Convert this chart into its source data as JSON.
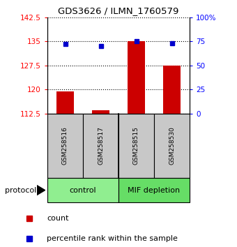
{
  "title": "GDS3626 / ILMN_1760579",
  "samples": [
    "GSM258516",
    "GSM258517",
    "GSM258515",
    "GSM258530"
  ],
  "groups": [
    {
      "name": "control",
      "indices": [
        0,
        1
      ],
      "color": "#90EE90"
    },
    {
      "name": "MIF depletion",
      "indices": [
        2,
        3
      ],
      "color": "#66DD66"
    }
  ],
  "bar_values": [
    119.5,
    113.5,
    135.0,
    127.5
  ],
  "dot_values_pct": [
    72,
    70,
    75,
    73
  ],
  "ylim_left": [
    112.5,
    142.5
  ],
  "ylim_right": [
    0,
    100
  ],
  "yticks_left": [
    112.5,
    120,
    127.5,
    135,
    142.5
  ],
  "yticks_right": [
    0,
    25,
    50,
    75,
    100
  ],
  "ytick_labels_right": [
    "0",
    "25",
    "50",
    "75",
    "100%"
  ],
  "bar_color": "#CC0000",
  "dot_color": "#0000CC",
  "bar_bottom": 112.5,
  "legend_count_label": "count",
  "legend_pct_label": "percentile rank within the sample",
  "protocol_label": "protocol",
  "sample_box_color": "#C8C8C8"
}
